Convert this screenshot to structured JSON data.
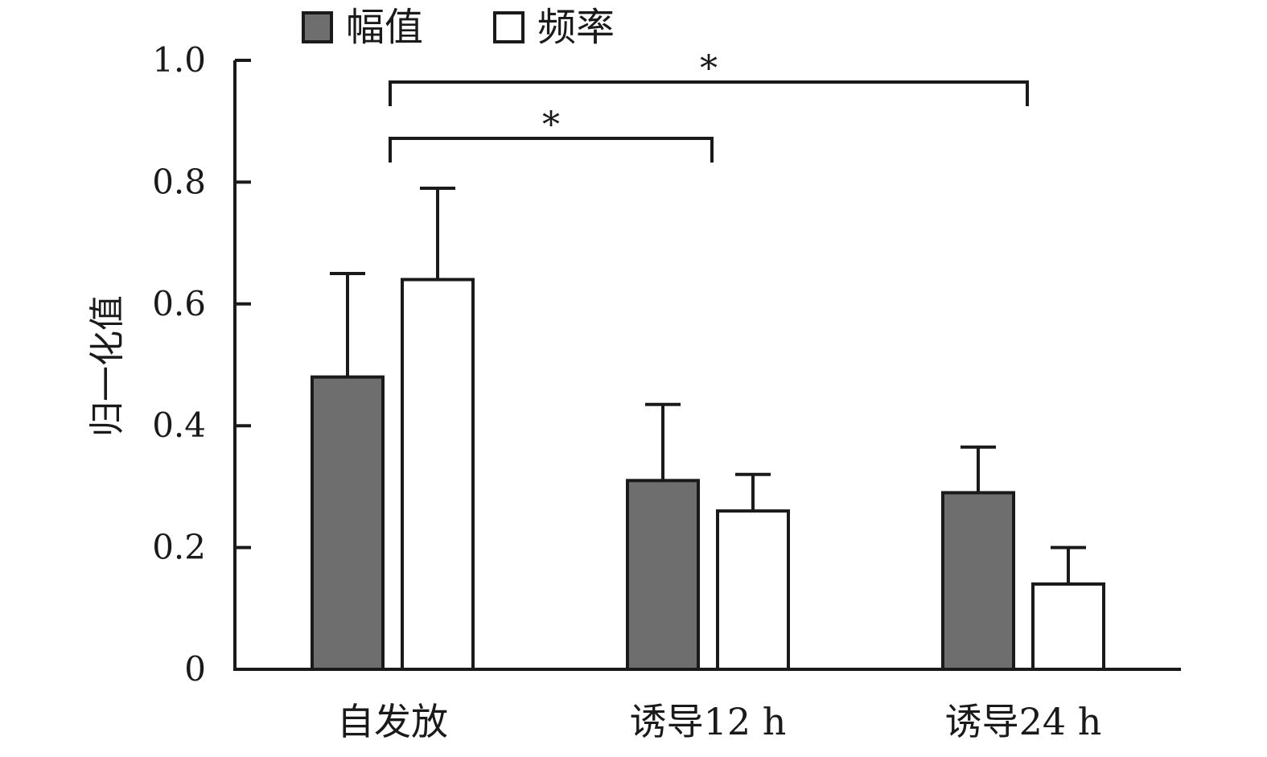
{
  "chart_data": {
    "type": "bar",
    "categories": [
      "自发放",
      "诱导12 h",
      "诱导24 h"
    ],
    "series": [
      {
        "name": "幅值",
        "values": [
          0.48,
          0.31,
          0.29
        ],
        "errors": [
          0.17,
          0.125,
          0.075
        ],
        "color": "#6e6e6e"
      },
      {
        "name": "频率",
        "values": [
          0.64,
          0.26,
          0.14
        ],
        "errors": [
          0.15,
          0.06,
          0.06
        ],
        "color": "#ffffff"
      }
    ],
    "ylabel": "归一化值",
    "xlabel": "",
    "ylim": [
      0,
      1.0
    ],
    "yticks": [
      0,
      0.2,
      0.4,
      0.6,
      0.8,
      1.0
    ],
    "ytick_labels": [
      "0",
      "0.2",
      "0.4",
      "0.6",
      "0.8",
      "1.0"
    ],
    "legend_position": "top-left",
    "grid": false,
    "significance": [
      {
        "from": "自发放",
        "to": "诱导12 h",
        "label": "*"
      },
      {
        "from": "自发放",
        "to": "诱导24 h",
        "label": "*"
      }
    ]
  }
}
